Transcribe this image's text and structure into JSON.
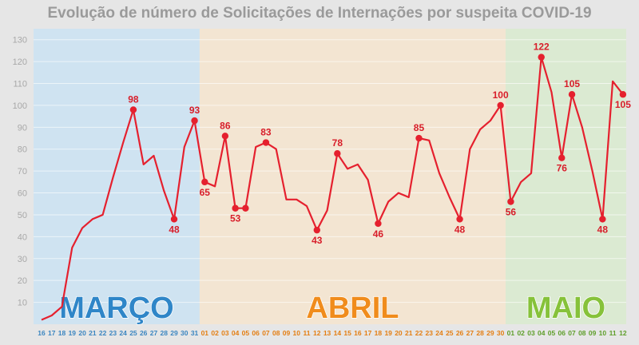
{
  "chart_data": {
    "type": "line",
    "title": "Evolução de número de Solicitações de Internações por suspeita COVID-19",
    "xlabel": "",
    "ylabel": "",
    "ylim": [
      0,
      135
    ],
    "yticks": [
      10,
      20,
      30,
      40,
      50,
      60,
      70,
      80,
      90,
      100,
      110,
      120,
      130
    ],
    "grid": true,
    "legend": "none",
    "colors": {
      "line": "#e5202e",
      "label": "#d81e2a",
      "axis_text": "#a8a8a8",
      "marco_band": "#cfe3f1",
      "abril_band": "#f3e5d2",
      "maio_band": "#dbead2",
      "marco_text": "#2f86c8",
      "abril_text": "#f08c1c",
      "maio_text": "#86c23a",
      "background": "#e6e6e6"
    },
    "months": [
      {
        "name": "MARÇO",
        "start": 0,
        "end": 15,
        "tick_color": "#3a85c0"
      },
      {
        "name": "ABRIL",
        "start": 16,
        "end": 45,
        "tick_color": "#e47e12"
      },
      {
        "name": "MAIO",
        "start": 46,
        "end": 57,
        "tick_color": "#5e9e2a"
      }
    ],
    "x": [
      "16",
      "17",
      "18",
      "19",
      "20",
      "21",
      "22",
      "23",
      "24",
      "25",
      "26",
      "27",
      "28",
      "29",
      "30",
      "31",
      "01",
      "02",
      "03",
      "04",
      "05",
      "06",
      "07",
      "08",
      "09",
      "10",
      "11",
      "12",
      "13",
      "14",
      "15",
      "16",
      "17",
      "18",
      "19",
      "20",
      "21",
      "22",
      "23",
      "24",
      "25",
      "26",
      "27",
      "28",
      "29",
      "30",
      "01",
      "02",
      "03",
      "04",
      "05",
      "06",
      "07",
      "08",
      "09",
      "10",
      "11",
      "12"
    ],
    "values": [
      2,
      4,
      8,
      35,
      44,
      48,
      50,
      67,
      83,
      98,
      73,
      77,
      61,
      48,
      81,
      93,
      65,
      63,
      86,
      53,
      53,
      81,
      83,
      80,
      57,
      57,
      54,
      43,
      52,
      78,
      71,
      73,
      66,
      46,
      56,
      60,
      58,
      85,
      84,
      69,
      58,
      48,
      80,
      89,
      93,
      100,
      56,
      65,
      69,
      122,
      106,
      76,
      105,
      90,
      70,
      48,
      111,
      105
    ],
    "point_labels": [
      {
        "index": 9,
        "text": "98",
        "pos": "above"
      },
      {
        "index": 13,
        "text": "48",
        "pos": "below"
      },
      {
        "index": 15,
        "text": "93",
        "pos": "above"
      },
      {
        "index": 16,
        "text": "65",
        "pos": "below"
      },
      {
        "index": 18,
        "text": "86",
        "pos": "above"
      },
      {
        "index": 19,
        "text": "53",
        "pos": "below"
      },
      {
        "index": 22,
        "text": "83",
        "pos": "above"
      },
      {
        "index": 27,
        "text": "43",
        "pos": "below"
      },
      {
        "index": 29,
        "text": "78",
        "pos": "above"
      },
      {
        "index": 33,
        "text": "46",
        "pos": "below"
      },
      {
        "index": 37,
        "text": "85",
        "pos": "above"
      },
      {
        "index": 41,
        "text": "48",
        "pos": "below"
      },
      {
        "index": 45,
        "text": "100",
        "pos": "above"
      },
      {
        "index": 46,
        "text": "56",
        "pos": "below"
      },
      {
        "index": 49,
        "text": "122",
        "pos": "above"
      },
      {
        "index": 51,
        "text": "76",
        "pos": "below"
      },
      {
        "index": 52,
        "text": "105",
        "pos": "above"
      },
      {
        "index": 55,
        "text": "48",
        "pos": "below"
      },
      {
        "index": 57,
        "text": "105",
        "pos": "below"
      }
    ],
    "markers": [
      9,
      13,
      15,
      16,
      18,
      19,
      20,
      22,
      27,
      29,
      33,
      37,
      41,
      45,
      46,
      49,
      51,
      52,
      55,
      57
    ]
  }
}
